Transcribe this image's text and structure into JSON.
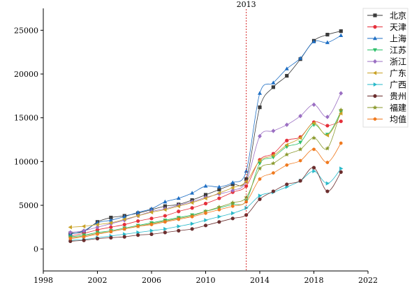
{
  "chart_data": {
    "type": "line",
    "x": [
      2000,
      2001,
      2002,
      2003,
      2004,
      2005,
      2006,
      2007,
      2008,
      2009,
      2010,
      2011,
      2012,
      2013,
      2014,
      2015,
      2016,
      2017,
      2018,
      2019,
      2020
    ],
    "xlim": [
      1998,
      2022
    ],
    "ylim": [
      -2500,
      27500
    ],
    "xticks": [
      1998,
      2002,
      2006,
      2010,
      2014,
      2018,
      2022
    ],
    "yticks": [
      0,
      5000,
      10000,
      15000,
      20000,
      25000
    ],
    "grid": false,
    "legend_position": "top-right",
    "annotation": {
      "x": 2013,
      "label": "2013",
      "color": "#d62728"
    },
    "series": [
      {
        "name": "北京",
        "color": "#3a3a3a",
        "marker": "square",
        "values": [
          1800,
          2000,
          3100,
          3600,
          3800,
          4100,
          4500,
          4900,
          5100,
          5600,
          6200,
          6800,
          7400,
          8000,
          16200,
          18500,
          19800,
          21700,
          23800,
          24500,
          24900
        ]
      },
      {
        "name": "天津",
        "color": "#e5303b",
        "marker": "circle",
        "values": [
          1500,
          1800,
          2200,
          2500,
          2800,
          3200,
          3500,
          3800,
          4300,
          4700,
          5200,
          5800,
          6500,
          7200,
          10200,
          10900,
          12400,
          12800,
          14500,
          14100,
          14600
        ]
      },
      {
        "name": "上海",
        "color": "#1f6fc4",
        "marker": "triangle-up",
        "values": [
          1700,
          2100,
          3000,
          3300,
          3700,
          4200,
          4600,
          5400,
          5800,
          6400,
          7200,
          7100,
          7600,
          8900,
          17800,
          19000,
          20600,
          21800,
          23700,
          23600,
          24400
        ]
      },
      {
        "name": "江苏",
        "color": "#2dbf6a",
        "marker": "triangle-down",
        "values": [
          1400,
          1600,
          1900,
          2100,
          2400,
          2700,
          3000,
          3300,
          3600,
          3900,
          4300,
          4700,
          5100,
          5500,
          9800,
          10500,
          11700,
          12200,
          14200,
          13100,
          15700
        ]
      },
      {
        "name": "浙江",
        "color": "#9b6fc3",
        "marker": "diamond",
        "values": [
          1900,
          2100,
          2500,
          2900,
          3300,
          3800,
          4300,
          4600,
          5000,
          5400,
          5900,
          6300,
          6700,
          7700,
          12900,
          13500,
          14200,
          15200,
          16500,
          15100,
          17800
        ]
      },
      {
        "name": "广东",
        "color": "#c9a227",
        "marker": "triangle-left",
        "values": [
          2500,
          2600,
          2800,
          3000,
          3400,
          3800,
          4200,
          4500,
          4900,
          5300,
          5800,
          6400,
          7000,
          7700,
          10100,
          10700,
          11900,
          12700,
          14400,
          13000,
          15500
        ]
      },
      {
        "name": "广西",
        "color": "#2ab9c9",
        "marker": "triangle-right",
        "values": [
          1000,
          1100,
          1300,
          1500,
          1700,
          1900,
          2100,
          2300,
          2600,
          2900,
          3300,
          3700,
          4100,
          4700,
          6100,
          6500,
          7100,
          7800,
          8900,
          7500,
          9200
        ]
      },
      {
        "name": "贵州",
        "color": "#6b2e2e",
        "marker": "circle",
        "values": [
          900,
          1000,
          1200,
          1300,
          1400,
          1600,
          1700,
          1900,
          2100,
          2300,
          2700,
          3100,
          3500,
          3900,
          5700,
          6600,
          7400,
          7800,
          9300,
          6600,
          8800
        ]
      },
      {
        "name": "福建",
        "color": "#8b9a2e",
        "marker": "star",
        "values": [
          1300,
          1500,
          1800,
          2000,
          2300,
          2600,
          2900,
          3200,
          3500,
          3800,
          4300,
          4800,
          5300,
          5900,
          9200,
          9800,
          10800,
          11400,
          12700,
          11500,
          15900
        ]
      },
      {
        "name": "均值",
        "color": "#f07a1f",
        "marker": "hexagon",
        "values": [
          1200,
          1400,
          1700,
          2000,
          2300,
          2600,
          2800,
          3100,
          3400,
          3700,
          4100,
          4500,
          4900,
          5400,
          8000,
          8700,
          9600,
          10100,
          11400,
          9900,
          12100
        ]
      }
    ]
  }
}
